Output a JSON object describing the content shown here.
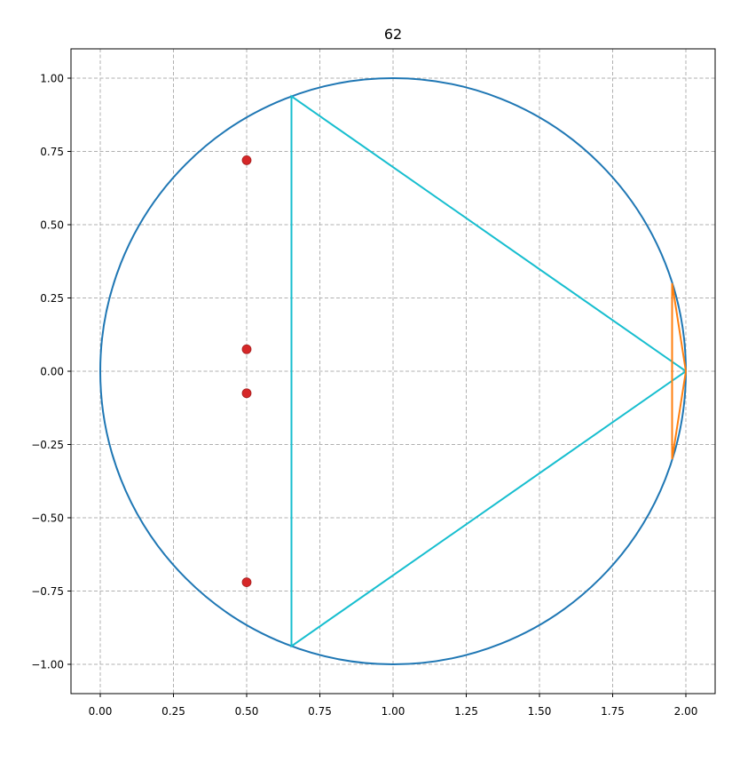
{
  "chart_data": {
    "type": "line",
    "title": "62",
    "xlabel": "",
    "ylabel": "",
    "xlim": [
      -0.1,
      2.1
    ],
    "ylim": [
      -1.1,
      1.1
    ],
    "xticks": [
      0.0,
      0.25,
      0.5,
      0.75,
      1.0,
      1.25,
      1.5,
      1.75,
      2.0
    ],
    "xtick_labels": [
      "0.00",
      "0.25",
      "0.50",
      "0.75",
      "1.00",
      "1.25",
      "1.50",
      "1.75",
      "2.00"
    ],
    "yticks": [
      1.0,
      0.75,
      0.5,
      0.25,
      0.0,
      -0.25,
      -0.5,
      -0.75,
      -1.0
    ],
    "ytick_labels": [
      "1.00",
      "0.75",
      "0.50",
      "0.25",
      "0.00",
      "−0.25",
      "−0.50",
      "−0.75",
      "−1.00"
    ],
    "grid": true,
    "circle": {
      "center": [
        1.0,
        0.0
      ],
      "radius": 1.0,
      "color": "#1f77b4"
    },
    "series": [
      {
        "kind": "polygon",
        "color": "#17becf",
        "points": [
          [
            2.0,
            0.0
          ],
          [
            0.653,
            0.938
          ],
          [
            0.653,
            -0.938
          ],
          [
            2.0,
            0.0
          ]
        ]
      },
      {
        "kind": "polygon",
        "color": "#ff7f0e",
        "points": [
          [
            2.0,
            0.0
          ],
          [
            1.953,
            0.3
          ],
          [
            1.953,
            -0.3
          ],
          [
            2.0,
            0.0
          ]
        ]
      },
      {
        "kind": "scatter",
        "color": "#d62728",
        "points": [
          [
            0.5,
            0.72
          ],
          [
            0.5,
            0.075
          ],
          [
            0.5,
            -0.075
          ],
          [
            0.5,
            -0.72
          ]
        ]
      }
    ]
  }
}
